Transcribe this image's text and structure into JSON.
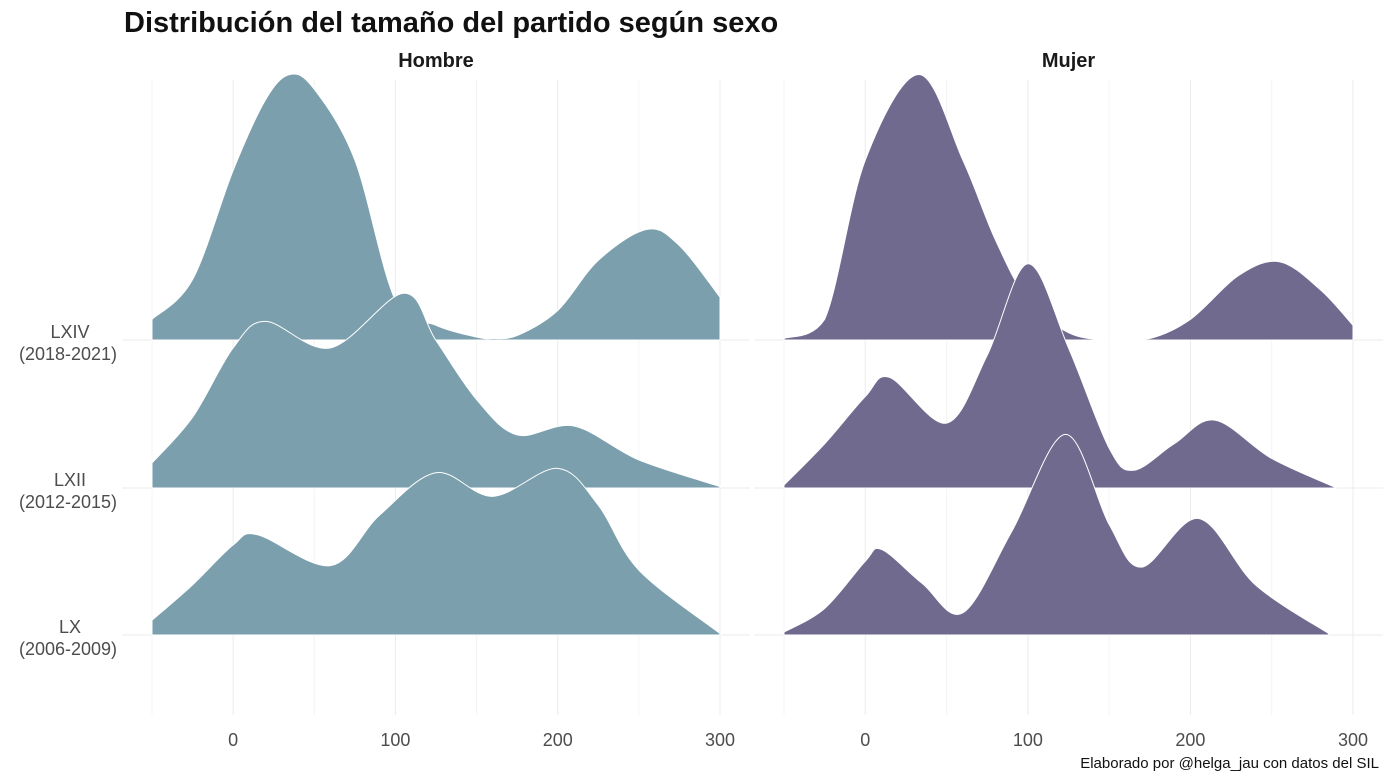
{
  "chart_data": {
    "type": "ridgeline",
    "title": "Distribución del tamaño del partido según sexo",
    "caption": "Elaborado por @helga_jau con datos del SIL",
    "xlabel": "",
    "ylabel": "",
    "xlim": [
      -50,
      300
    ],
    "x_ticks": [
      "0",
      "100",
      "200",
      "300"
    ],
    "x_tick_values": [
      0,
      100,
      200,
      300
    ],
    "grid": true,
    "colors": {
      "Hombre": "#7b9fad",
      "Mujer": "#706a8f",
      "outline": "#ffffff"
    },
    "rows": [
      {
        "name": "LXIV",
        "period": "(2018-2021)"
      },
      {
        "name": "LXII",
        "period": "(2012-2015)"
      },
      {
        "name": "LX",
        "period": "(2006-2009)"
      }
    ],
    "panels": [
      {
        "name": "Hombre",
        "series": [
          {
            "row": "LXIV",
            "x": [
              -50,
              -25,
              0,
              20,
              35,
              50,
              75,
              100,
              125,
              150,
              160,
              175,
              200,
              225,
              255,
              275,
              300
            ],
            "density": [
              0.14,
              0.41,
              1.15,
              1.63,
              1.8,
              1.7,
              1.22,
              0.27,
              0.1,
              0.02,
              0.01,
              0.03,
              0.2,
              0.54,
              0.75,
              0.64,
              0.29
            ]
          },
          {
            "row": "LXII",
            "x": [
              -50,
              -25,
              0,
              20,
              60,
              105,
              125,
              150,
              175,
              210,
              250,
              300
            ],
            "density": [
              0.17,
              0.48,
              0.95,
              1.13,
              0.95,
              1.32,
              1.0,
              0.6,
              0.36,
              0.42,
              0.19,
              0.01
            ]
          },
          {
            "row": "LX",
            "x": [
              -50,
              -25,
              0,
              15,
              60,
              90,
              125,
              160,
              200,
              225,
              250,
              300
            ],
            "density": [
              0.1,
              0.34,
              0.61,
              0.68,
              0.47,
              0.81,
              1.1,
              0.94,
              1.13,
              0.88,
              0.44,
              0.01
            ]
          }
        ]
      },
      {
        "name": "Mujer",
        "series": [
          {
            "row": "LXIV",
            "x": [
              -50,
              -25,
              0,
              33,
              60,
              80,
              100,
              125,
              150,
              175,
              200,
              230,
              255,
              280,
              300
            ],
            "density": [
              0.01,
              0.14,
              1.22,
              1.8,
              1.22,
              0.68,
              0.27,
              0.05,
              0.0,
              0.01,
              0.14,
              0.44,
              0.53,
              0.34,
              0.1
            ]
          },
          {
            "row": "LXII",
            "x": [
              -50,
              -25,
              0,
              15,
              50,
              75,
              100,
              125,
              150,
              165,
              190,
              215,
              250,
              290
            ],
            "density": [
              0.02,
              0.3,
              0.62,
              0.75,
              0.44,
              0.9,
              1.52,
              0.95,
              0.27,
              0.12,
              0.3,
              0.46,
              0.2,
              0.0
            ]
          },
          {
            "row": "LX",
            "x": [
              -50,
              -25,
              0,
              10,
              35,
              60,
              90,
              123,
              150,
              170,
              205,
              240,
              285
            ],
            "density": [
              0.02,
              0.18,
              0.5,
              0.58,
              0.35,
              0.15,
              0.7,
              1.36,
              0.75,
              0.46,
              0.79,
              0.34,
              0.01
            ]
          }
        ]
      }
    ]
  }
}
